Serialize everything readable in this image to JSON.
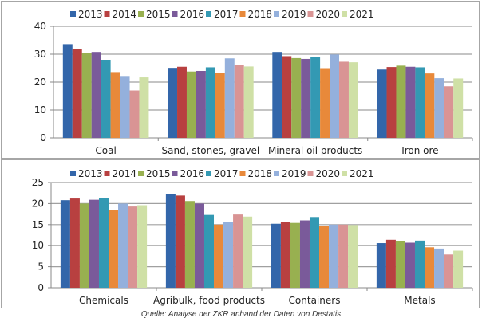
{
  "chart_data": [
    {
      "type": "bar",
      "title": "",
      "xlabel": "",
      "ylabel": "",
      "ylim": [
        0,
        40
      ],
      "yticks": [
        0,
        10,
        20,
        30,
        40
      ],
      "grid": true,
      "legend": "top",
      "categories": [
        "Coal",
        "Sand, stones, gravel",
        "Mineral oil products",
        "Iron ore"
      ],
      "series": [
        {
          "name": "2013",
          "color": "#3366aa",
          "values": [
            33.6,
            25.1,
            30.8,
            24.5
          ]
        },
        {
          "name": "2014",
          "color": "#b84040",
          "values": [
            31.8,
            25.5,
            29.3,
            25.4
          ]
        },
        {
          "name": "2015",
          "color": "#98b050",
          "values": [
            30.3,
            23.8,
            28.6,
            25.9
          ]
        },
        {
          "name": "2016",
          "color": "#7a5a9a",
          "values": [
            30.8,
            24.0,
            28.3,
            25.5
          ]
        },
        {
          "name": "2017",
          "color": "#3399b3",
          "values": [
            28.0,
            25.3,
            28.9,
            25.3
          ]
        },
        {
          "name": "2018",
          "color": "#e8893a",
          "values": [
            23.6,
            23.3,
            25.0,
            23.1
          ]
        },
        {
          "name": "2019",
          "color": "#94b0dc",
          "values": [
            22.2,
            28.5,
            29.9,
            21.4
          ]
        },
        {
          "name": "2020",
          "color": "#d99494",
          "values": [
            17.0,
            26.1,
            27.3,
            18.5
          ]
        },
        {
          "name": "2021",
          "color": "#cfe0a6",
          "values": [
            21.7,
            25.6,
            27.1,
            21.3
          ]
        }
      ]
    },
    {
      "type": "bar",
      "title": "",
      "xlabel": "",
      "ylabel": "",
      "ylim": [
        0,
        25
      ],
      "yticks": [
        0,
        5,
        10,
        15,
        20,
        25
      ],
      "grid": true,
      "legend": "top",
      "categories": [
        "Chemicals",
        "Agribulk, food products",
        "Containers",
        "Metals"
      ],
      "series": [
        {
          "name": "2013",
          "color": "#3366aa",
          "values": [
            20.8,
            22.2,
            15.2,
            10.6
          ]
        },
        {
          "name": "2014",
          "color": "#b84040",
          "values": [
            21.2,
            21.9,
            15.7,
            11.4
          ]
        },
        {
          "name": "2015",
          "color": "#98b050",
          "values": [
            20.0,
            20.6,
            15.4,
            11.1
          ]
        },
        {
          "name": "2016",
          "color": "#7a5a9a",
          "values": [
            20.9,
            20.0,
            16.0,
            10.7
          ]
        },
        {
          "name": "2017",
          "color": "#3399b3",
          "values": [
            21.4,
            17.3,
            16.8,
            11.2
          ]
        },
        {
          "name": "2018",
          "color": "#e8893a",
          "values": [
            18.5,
            15.0,
            14.7,
            9.6
          ]
        },
        {
          "name": "2019",
          "color": "#94b0dc",
          "values": [
            20.0,
            15.7,
            15.0,
            9.3
          ]
        },
        {
          "name": "2020",
          "color": "#d99494",
          "values": [
            19.3,
            17.4,
            15.0,
            7.9
          ]
        },
        {
          "name": "2021",
          "color": "#cfe0a6",
          "values": [
            19.6,
            16.9,
            14.9,
            8.8
          ]
        }
      ]
    }
  ],
  "source": "Quelle: Analyse der ZKR anhand der Daten von Destatis"
}
